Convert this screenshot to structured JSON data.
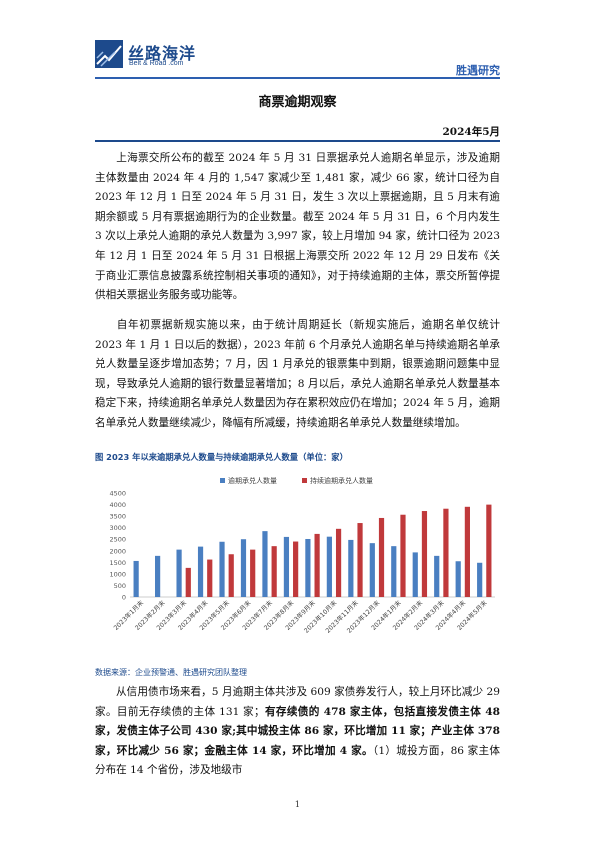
{
  "header": {
    "logo_cn": "丝路海洋",
    "logo_en": "Belt & Road .com",
    "section": "胜遇研究"
  },
  "doc": {
    "title": "商票逾期观察",
    "date": "2024年5月",
    "paragraph1": "上海票交所公布的截至 2024 年 5 月 31 日票据承兑人逾期名单显示，涉及逾期主体数量由 2024 年 4 月的 1,547 家减少至 1,481 家，减少 66 家，统计口径为自 2023 年 12 月 1 日至 2024 年 5 月 31 日，发生 3 次以上票据逾期，且 5 月末有逾期余额或 5 月有票据逾期行为的企业数量。截至 2024 年 5 月 31 日，6 个月内发生 3 次以上承兑人逾期的承兑人数量为 3,997 家，较上月增加 94 家，统计口径为 2023 年 12 月 1 日至 2024 年 5 月 31 日根据上海票交所 2022 年 12 月 29 日发布《关于商业汇票信息披露系统控制相关事项的通知》，对于持续逾期的主体，票交所暂停提供相关票据业务服务或功能等。",
    "paragraph2": "自年初票据新规实施以来，由于统计周期延长（新规实施后，逾期名单仅统计 2023 年 1 月 1 日以后的数据），2023 年前 6 个月承兑人逾期名单与持续逾期名单承兑人数量呈逐步增加态势；7 月，因 1 月承兑的银票集中到期，银票逾期问题集中显现，导致承兑人逾期的银行数量显著增加；8 月以后，承兑人逾期名单承兑人数量基本稳定下来，持续逾期名单承兑人数量因为存在累积效应仍在增加；2024 年 5 月，逾期名单承兑人数量继续减少，降幅有所减缓，持续逾期名单承兑人数量继续增加。",
    "chart_caption": "图  2023 年以来逾期承兑人数量与持续逾期承兑人数量（单位：家）",
    "source": "数据来源：企业预警通、胜遇研究团队整理",
    "p3_a": "从信用债市场来看，5 月逾期主体共涉及 609 家债券发行人，较上月环比减少 29 家。目前无存续债的主体 131 家；",
    "p3_b": "有存续债的 478 家主体，包括直接发债主体 48 家，发债主体子公司 430 家;其中城投主体 86 家，环比增加 11 家；产业主体 378 家，环比减少 56 家；金融主体 14 家，环比增加 4 家。",
    "p3_c": "（1）城投方面，86 家主体分布在 14 个省份，涉及地级市",
    "page_number": "1"
  },
  "chart_data": {
    "type": "bar",
    "categories": [
      "2023年1月末",
      "2023年2月末",
      "2023年3月末",
      "2023年4月末",
      "2023年5月末",
      "2023年6月末",
      "2023年7月末",
      "2023年8月末",
      "2023年9月末",
      "2023年10月末",
      "2023年11月末",
      "2023年12月末",
      "2024年1月末",
      "2024年2月末",
      "2024年3月末",
      "2024年4月末",
      "2024年5月末"
    ],
    "series": [
      {
        "name": "逾期承兑人数量",
        "color": "#4a7fc1",
        "values": [
          1560,
          1780,
          2050,
          2180,
          2390,
          2500,
          2850,
          2600,
          2510,
          2610,
          2470,
          2330,
          2200,
          1930,
          1780,
          1547,
          1481
        ]
      },
      {
        "name": "持续逾期承兑人数量",
        "color": "#c0393b",
        "values": [
          null,
          null,
          1260,
          1620,
          1850,
          2050,
          2200,
          2400,
          2730,
          2950,
          3200,
          3420,
          3560,
          3720,
          3820,
          3903,
          3997
        ]
      }
    ],
    "ylim": [
      0,
      4500
    ],
    "yticks": [
      0,
      500,
      1000,
      1500,
      2000,
      2500,
      3000,
      3500,
      4000,
      4500
    ],
    "legend": "top",
    "grid": false
  }
}
